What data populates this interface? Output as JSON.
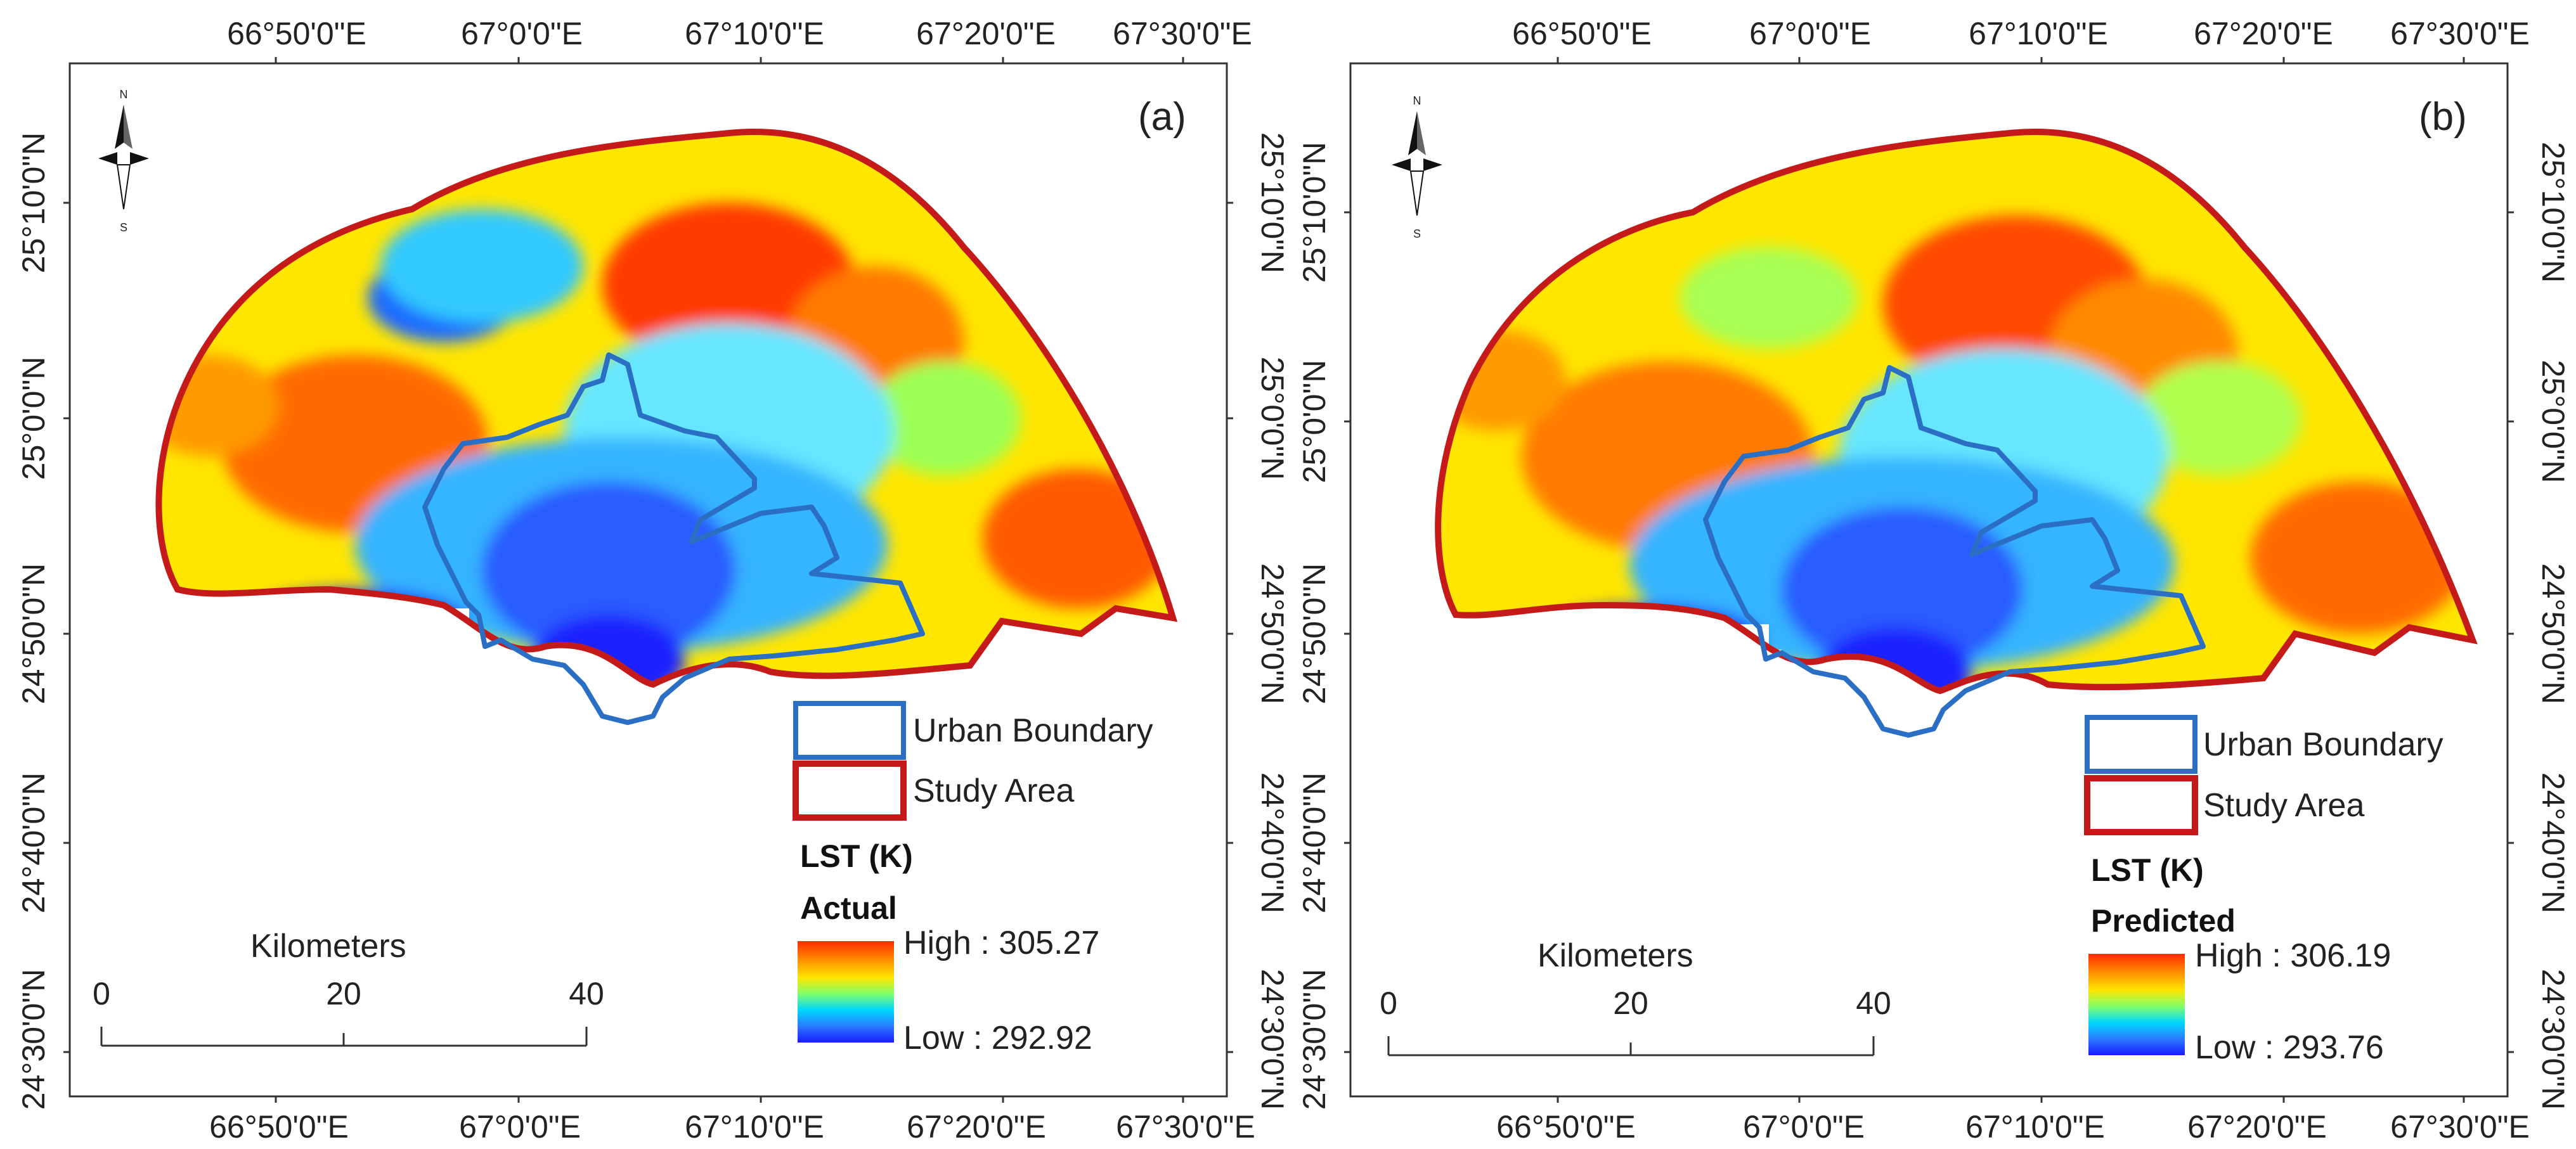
{
  "panels": [
    {
      "id": "a",
      "panel_label": "(a)",
      "top_ticks": [
        "66°50'0\"E",
        "67°0'0\"E",
        "67°10'0\"E",
        "67°20'0\"E",
        "67°30'0\"E"
      ],
      "bottom_ticks": [
        "66°50'0\"E",
        "67°0'0\"E",
        "67°10'0\"E",
        "67°20'0\"E",
        "67°30'0\"E"
      ],
      "left_ticks": [
        "25°10'0\"N",
        "25°0'0\"N",
        "24°50'0\"N",
        "24°40'0\"N",
        "24°30'0\"N"
      ],
      "right_ticks": [
        "25°10'0\"N",
        "25°0'0\"N",
        "24°50'0\"N",
        "24°40'0\"N",
        "24°30'0\"N"
      ],
      "legend": {
        "urban_boundary": "Urban Boundary",
        "study_area": "Study Area",
        "lst_title": "LST (K)",
        "lst_subtitle": "Actual",
        "high_label": "High : 305.27",
        "low_label": "Low : 292.92"
      },
      "scalebar": {
        "unit": "Kilometers",
        "ticks": [
          "0",
          "20",
          "40"
        ]
      }
    },
    {
      "id": "b",
      "panel_label": "(b)",
      "top_ticks": [
        "66°50'0\"E",
        "67°0'0\"E",
        "67°10'0\"E",
        "67°20'0\"E",
        "67°30'0\"E"
      ],
      "bottom_ticks": [
        "66°50'0\"E",
        "67°0'0\"E",
        "67°10'0\"E",
        "67°20'0\"E",
        "67°30'0\"E"
      ],
      "left_ticks": [
        "25°10'0\"N",
        "25°0'0\"N",
        "24°50'0\"N",
        "24°40'0\"N",
        "24°30'0\"N"
      ],
      "right_ticks": [
        "25°10'0\"N",
        "25°0'0\"N",
        "24°50'0\"N",
        "24°40'0\"N",
        "24°30'0\"N"
      ],
      "legend": {
        "urban_boundary": "Urban Boundary",
        "study_area": "Study Area",
        "lst_title": "LST (K)",
        "lst_subtitle": "Predicted",
        "high_label": "High : 306.19",
        "low_label": "Low : 293.76"
      },
      "scalebar": {
        "unit": "Kilometers",
        "ticks": [
          "0",
          "20",
          "40"
        ]
      }
    }
  ],
  "colors": {
    "urban_boundary": "#2a6fc4",
    "study_area": "#c41a1a",
    "ramp": [
      "#ff2a00",
      "#ff8c00",
      "#ffe600",
      "#7fff6a",
      "#00d6ff",
      "#2a7bff",
      "#1a1aff"
    ]
  },
  "icons": {
    "north_arrow": "north-arrow-icon"
  }
}
